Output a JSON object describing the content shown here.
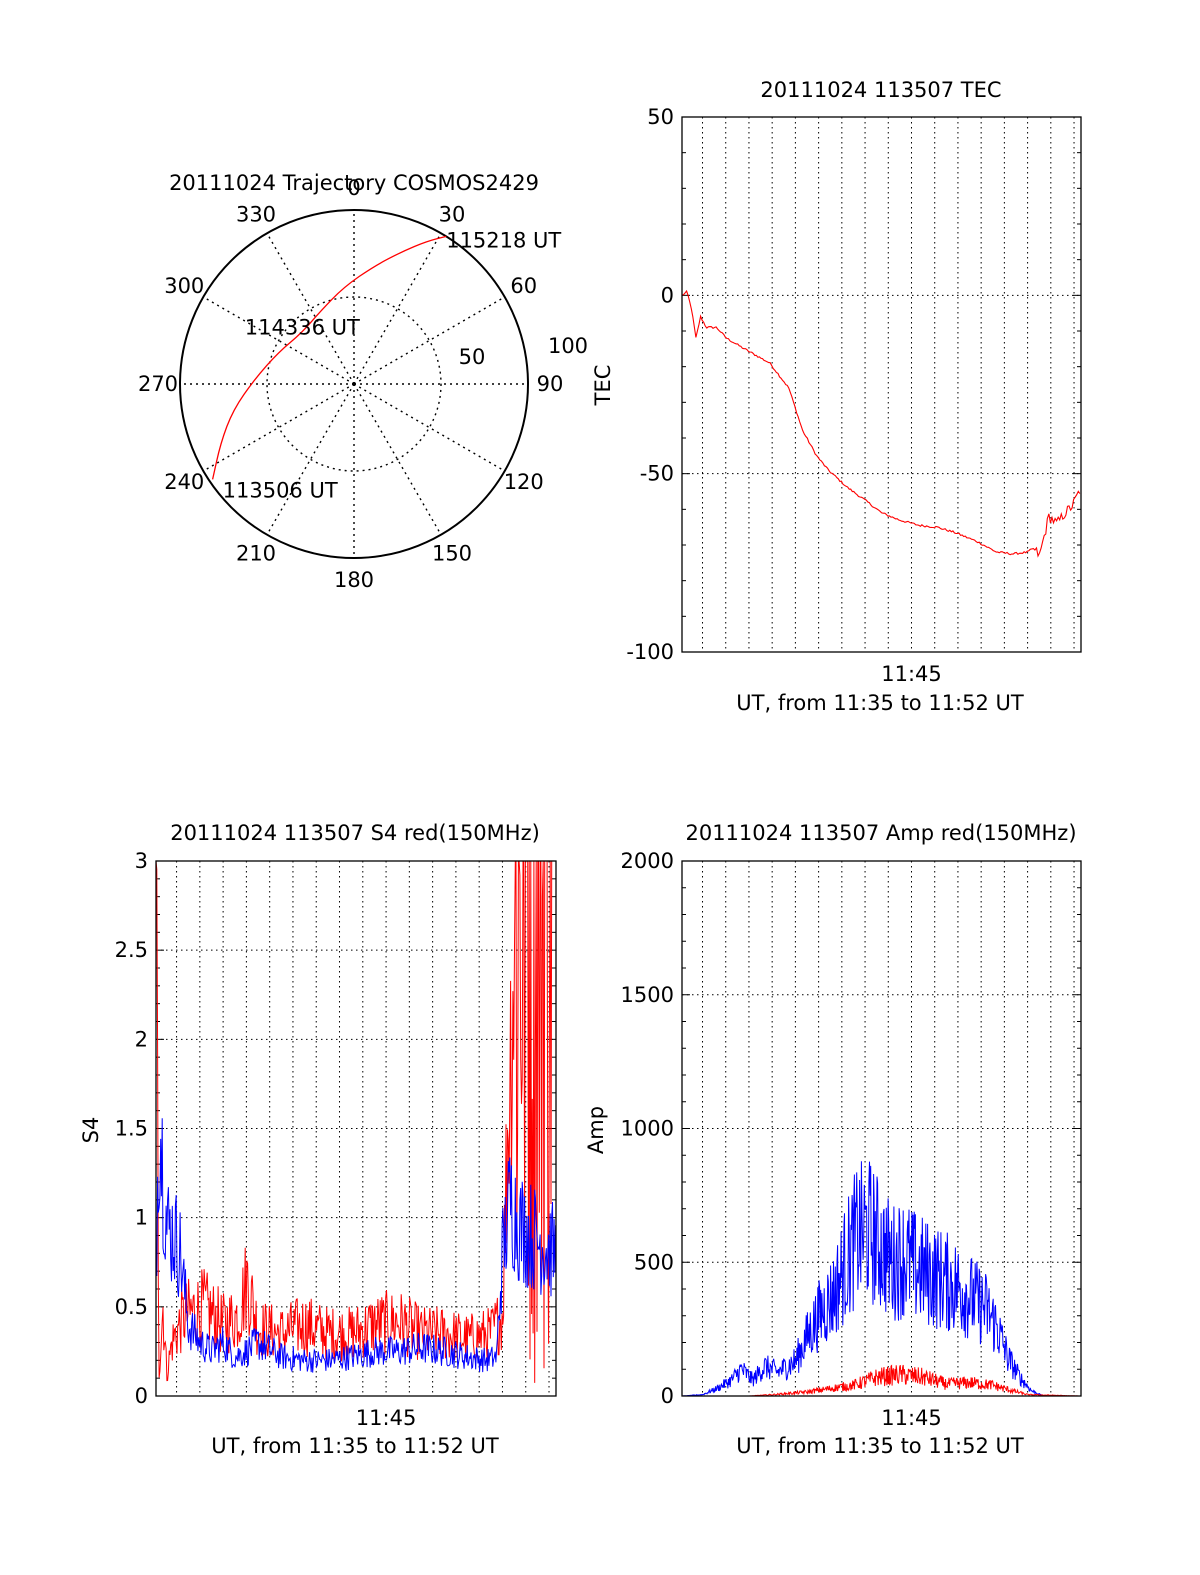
{
  "chart_data": [
    {
      "id": "polar",
      "type": "polar-trajectory",
      "title": "20111024 Trajectory COSMOS2429",
      "azimuth_labels": [
        "0",
        "30",
        "60",
        "90",
        "120",
        "150",
        "180",
        "210",
        "240",
        "270",
        "300",
        "330"
      ],
      "radial_labels": [
        "50",
        "100"
      ],
      "rlim": [
        0,
        100
      ],
      "grid": true,
      "series": [
        {
          "color": "#ff0000",
          "points": [
            {
              "az": 236,
              "r": 98
            },
            {
              "az": 246,
              "r": 84
            },
            {
              "az": 258,
              "r": 71
            },
            {
              "az": 273,
              "r": 57
            },
            {
              "az": 293,
              "r": 47
            },
            {
              "az": 315,
              "r": 42
            },
            {
              "az": 335,
              "r": 46
            },
            {
              "az": 354,
              "r": 56
            },
            {
              "az": 10,
              "r": 69
            },
            {
              "az": 20,
              "r": 81
            },
            {
              "az": 27,
              "r": 92
            },
            {
              "az": 32,
              "r": 100
            }
          ]
        }
      ],
      "annotations": [
        {
          "text": "113506 UT",
          "az": 236,
          "r": 98
        },
        {
          "text": "114336 UT",
          "az": 315,
          "r": 42
        },
        {
          "text": "115218 UT",
          "az": 32,
          "r": 100
        }
      ]
    },
    {
      "id": "tec",
      "type": "line",
      "title": "20111024 113507 TEC",
      "xlabel": "UT, from 11:35 to 11:52 UT",
      "ylabel": "TEC",
      "xlim": [
        "11:35:07",
        "11:52:18"
      ],
      "ylim": [
        -100,
        50
      ],
      "yticks": [
        "50",
        "0",
        "-50",
        "-100"
      ],
      "xtick_labels": [
        {
          "t": "11:45:00",
          "label": "11:45"
        }
      ],
      "grid": true,
      "series": [
        {
          "color": "#ff0000",
          "x": [
            "11:35:07",
            "11:35:20",
            "11:35:32",
            "11:35:43",
            "11:35:55",
            "11:36:10",
            "11:36:36",
            "11:37:02",
            "11:37:48",
            "11:38:54",
            "11:39:43",
            "11:40:19",
            "11:40:55",
            "11:41:25",
            "11:42:16",
            "11:43:07",
            "11:43:43",
            "11:44:29",
            "11:45:20",
            "11:46:06",
            "11:46:52",
            "11:47:49",
            "11:48:40",
            "11:49:23",
            "11:49:59",
            "11:50:15",
            "11:50:31",
            "11:50:55",
            "11:51:16",
            "11:51:37",
            "11:51:56",
            "11:52:18"
          ],
          "values": [
            0,
            1,
            -4,
            -12,
            -6,
            -9,
            -9,
            -12,
            -15,
            -19,
            -26,
            -38,
            -45,
            -49,
            -54,
            -58,
            -61,
            -63,
            -64.5,
            -65,
            -66.5,
            -69,
            -72,
            -72.5,
            -72,
            -71,
            -73,
            -62,
            -64,
            -61,
            -59,
            -54
          ]
        }
      ]
    },
    {
      "id": "s4",
      "type": "line",
      "title": "20111024 113507 S4 red(150MHz)",
      "xlabel": "UT, from 11:35 to 11:52 UT",
      "ylabel": "S4",
      "xlim": [
        "11:35:07",
        "11:52:18"
      ],
      "ylim": [
        0,
        3
      ],
      "yticks": [
        "3",
        "2.5",
        "2",
        "1.5",
        "1",
        "0.5",
        "0"
      ],
      "xtick_labels": [
        {
          "t": "11:45:00",
          "label": "11:45"
        }
      ],
      "grid": true,
      "series": [
        {
          "color": "#ff0000",
          "x": [
            "11:35:07",
            "11:35:15",
            "11:35:25",
            "11:35:35",
            "11:35:48",
            "11:36:20",
            "11:37:10",
            "11:38:00",
            "11:38:40",
            "11:39:02",
            "11:39:30",
            "11:40:30",
            "11:41:30",
            "11:42:30",
            "11:43:30",
            "11:44:30",
            "11:45:30",
            "11:46:30",
            "11:47:30",
            "11:48:30",
            "11:49:30",
            "11:50:00",
            "11:50:12",
            "11:50:25",
            "11:50:40",
            "11:51:00",
            "11:51:20",
            "11:51:40",
            "11:52:00"
          ],
          "values": [
            3,
            0.15,
            0.5,
            0.12,
            0.3,
            0.45,
            0.5,
            0.4,
            0.45,
            0.65,
            0.38,
            0.35,
            0.4,
            0.35,
            0.35,
            0.4,
            0.42,
            0.35,
            0.35,
            0.32,
            0.35,
            0.45,
            1.4,
            2.2,
            3,
            3,
            3,
            3,
            3
          ]
        },
        {
          "color": "#0000ff",
          "x": [
            "11:35:07",
            "11:35:15",
            "11:35:35",
            "11:35:55",
            "11:36:10",
            "11:36:30",
            "11:37:00",
            "11:37:30",
            "11:38:00",
            "11:38:30",
            "11:39:00",
            "11:39:30",
            "11:40:30",
            "11:41:30",
            "11:42:30",
            "11:43:30",
            "11:44:30",
            "11:45:30",
            "11:46:30",
            "11:47:30",
            "11:48:30",
            "11:49:20",
            "11:49:45",
            "11:50:00",
            "11:50:20",
            "11:50:45",
            "11:51:15",
            "11:51:45",
            "11:52:18"
          ],
          "values": [
            0.8,
            1.6,
            0.95,
            0.9,
            0.8,
            0.4,
            0.3,
            0.25,
            0.3,
            0.22,
            0.25,
            0.3,
            0.22,
            0.2,
            0.2,
            0.22,
            0.25,
            0.25,
            0.27,
            0.25,
            0.22,
            0.2,
            0.22,
            0.8,
            1.1,
            0.95,
            0.9,
            0.85,
            0.8
          ]
        }
      ]
    },
    {
      "id": "amp",
      "type": "line",
      "title": "20111024 113507 Amp red(150MHz)",
      "xlabel": "UT, from 11:35 to 11:52 UT",
      "ylabel": "Amp",
      "xlim": [
        "11:35:07",
        "11:52:18"
      ],
      "ylim": [
        0,
        2000
      ],
      "yticks": [
        "2000",
        "1500",
        "1000",
        "500",
        "0"
      ],
      "xtick_labels": [
        {
          "t": "11:45:00",
          "label": "11:45"
        }
      ],
      "grid": true,
      "series": [
        {
          "color": "#0000ff",
          "x": [
            "11:35:07",
            "11:36:00",
            "11:36:40",
            "11:37:15",
            "11:37:40",
            "11:38:10",
            "11:38:40",
            "11:39:15",
            "11:40:00",
            "11:40:30",
            "11:41:00",
            "11:41:40",
            "11:42:10",
            "11:42:40",
            "11:43:10",
            "11:43:40",
            "11:44:10",
            "11:44:40",
            "11:45:10",
            "11:45:40",
            "11:46:10",
            "11:46:40",
            "11:47:10",
            "11:47:40",
            "11:48:10",
            "11:48:40",
            "11:49:10",
            "11:49:40",
            "11:50:10",
            "11:50:40",
            "11:51:30",
            "11:52:18"
          ],
          "values": [
            0,
            5,
            30,
            60,
            100,
            60,
            110,
            90,
            130,
            220,
            300,
            380,
            500,
            600,
            620,
            560,
            500,
            520,
            480,
            460,
            440,
            420,
            400,
            360,
            330,
            260,
            140,
            70,
            20,
            0,
            0,
            0
          ]
        },
        {
          "color": "#ff0000",
          "x": [
            "11:35:07",
            "11:38:00",
            "11:39:00",
            "11:40:30",
            "11:41:40",
            "11:42:30",
            "11:43:30",
            "11:44:30",
            "11:45:30",
            "11:46:30",
            "11:47:30",
            "11:48:30",
            "11:49:20",
            "11:50:00",
            "11:52:18"
          ],
          "values": [
            0,
            0,
            5,
            15,
            30,
            40,
            70,
            80,
            70,
            45,
            50,
            40,
            20,
            5,
            0
          ]
        }
      ]
    }
  ]
}
